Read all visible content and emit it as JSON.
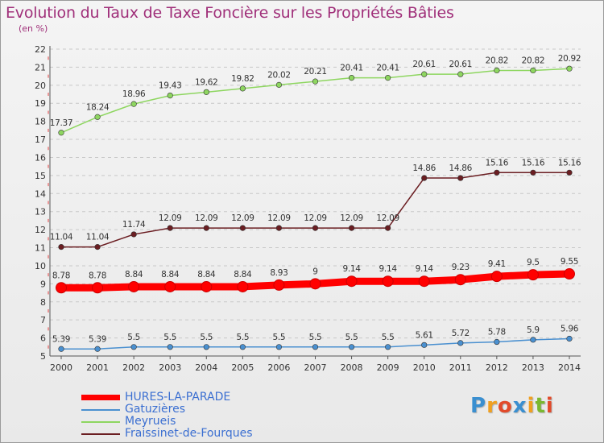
{
  "header": {
    "title": "Evolution du Taux de Taxe Foncière sur les Propriétés Bâties",
    "subtitle": "(en %)"
  },
  "logo": {
    "letters": [
      "P",
      "r",
      "o",
      "x",
      "i",
      "t",
      "i"
    ],
    "colors": [
      "#3a8fd0",
      "#f0a020",
      "#e24a2a",
      "#3a8fd0",
      "#f0a020",
      "#7ab830",
      "#e24a2a"
    ]
  },
  "chart_data": {
    "type": "line",
    "title": "Evolution du Taux de Taxe Foncière sur les Propriétés Bâties",
    "subtitle": "(en %)",
    "x": [
      "2000",
      "2001",
      "2002",
      "2003",
      "2004",
      "2005",
      "2006",
      "2007",
      "2008",
      "2009",
      "2010",
      "2011",
      "2012",
      "2013",
      "2014"
    ],
    "ylim": [
      5,
      22
    ],
    "yticks": [
      5,
      6,
      7,
      8,
      9,
      10,
      11,
      12,
      13,
      14,
      15,
      16,
      17,
      18,
      19,
      20,
      21,
      22
    ],
    "grid": "horizontal dashed",
    "legend_position": "bottom-left",
    "series": [
      {
        "name": "HURES-LA-PARADE",
        "color": "#ff0000",
        "width": "thick",
        "values": [
          8.78,
          8.78,
          8.84,
          8.84,
          8.84,
          8.84,
          8.93,
          9,
          9.14,
          9.14,
          9.14,
          9.23,
          9.41,
          9.5,
          9.55
        ],
        "labels": [
          "8.78",
          "8.78",
          "8.84",
          "8.84",
          "8.84",
          "8.84",
          "8.93",
          "9",
          "9.14",
          "9.14",
          "9.14",
          "9.23",
          "9.41",
          "9.5",
          "9.55"
        ]
      },
      {
        "name": "Gatuzières",
        "color": "#4a90d0",
        "width": "thin",
        "values": [
          5.39,
          5.39,
          5.5,
          5.5,
          5.5,
          5.5,
          5.5,
          5.5,
          5.5,
          5.5,
          5.61,
          5.72,
          5.78,
          5.9,
          5.96
        ],
        "labels": [
          "5.39",
          "5.39",
          "5.5",
          "5.5",
          "5.5",
          "5.5",
          "5.5",
          "5.5",
          "5.5",
          "5.5",
          "5.61",
          "5.72",
          "5.78",
          "5.9",
          "5.96"
        ]
      },
      {
        "name": "Meyrueis",
        "color": "#8ed660",
        "width": "thin",
        "values": [
          17.37,
          18.24,
          18.96,
          19.43,
          19.62,
          19.82,
          20.02,
          20.21,
          20.41,
          20.41,
          20.61,
          20.61,
          20.82,
          20.82,
          20.92
        ],
        "labels": [
          "17.37",
          "18.24",
          "18.96",
          "19.43",
          "19.62",
          "19.82",
          "20.02",
          "20.21",
          "20.41",
          "20.41",
          "20.61",
          "20.61",
          "20.82",
          "20.82",
          "20.92"
        ]
      },
      {
        "name": "Fraissinet-de-Fourques",
        "color": "#6b1e22",
        "width": "thin",
        "values": [
          11.04,
          11.04,
          11.74,
          12.09,
          12.09,
          12.09,
          12.09,
          12.09,
          12.09,
          12.09,
          14.86,
          14.86,
          15.16,
          15.16,
          15.16
        ],
        "labels": [
          "11.04",
          "11.04",
          "11.74",
          "12.09",
          "12.09",
          "12.09",
          "12.09",
          "12.09",
          "12.09",
          "12.09",
          "14.86",
          "14.86",
          "15.16",
          "15.16",
          "15.16"
        ]
      }
    ]
  }
}
